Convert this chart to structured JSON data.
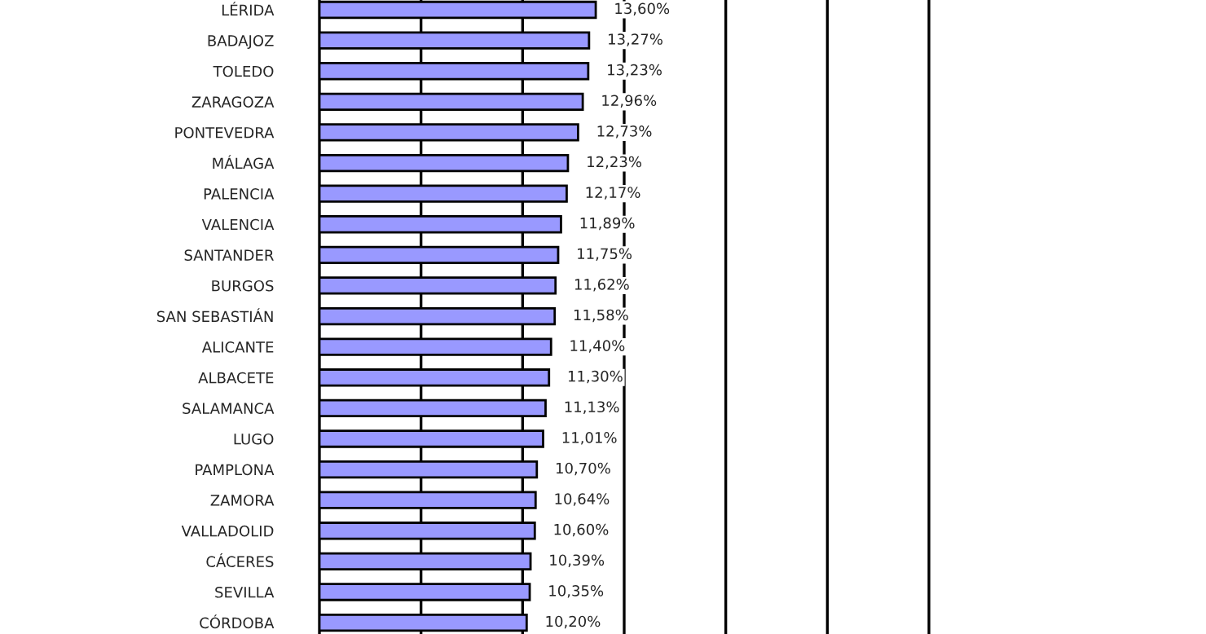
{
  "chart_data": {
    "type": "bar",
    "orientation": "horizontal",
    "categories": [
      "LÉRIDA",
      "BADAJOZ",
      "TOLEDO",
      "ZARAGOZA",
      "PONTEVEDRA",
      "MÁLAGA",
      "PALENCIA",
      "VALENCIA",
      "SANTANDER",
      "BURGOS",
      "SAN SEBASTIÁN",
      "ALICANTE",
      "ALBACETE",
      "SALAMANCA",
      "LUGO",
      "PAMPLONA",
      "ZAMORA",
      "VALLADOLID",
      "CÁCERES",
      "SEVILLA",
      "CÓRDOBA"
    ],
    "values": [
      13.6,
      13.27,
      13.23,
      12.96,
      12.73,
      12.23,
      12.17,
      11.89,
      11.75,
      11.62,
      11.58,
      11.4,
      11.3,
      11.13,
      11.01,
      10.7,
      10.64,
      10.6,
      10.39,
      10.35,
      10.2
    ],
    "value_labels": [
      "13,60%",
      "13,27%",
      "13,23%",
      "12,96%",
      "12,73%",
      "12,23%",
      "12,17%",
      "11,89%",
      "11,75%",
      "11,62%",
      "11,58%",
      "11,40%",
      "11,30%",
      "11,13%",
      "11,01%",
      "10,70%",
      "10,64%",
      "10,60%",
      "10,39%",
      "10,35%",
      "10,20%"
    ],
    "color": "#9999ff",
    "xlim": [
      0,
      30
    ],
    "xticks": [
      {
        "value": 5,
        "label": null
      },
      {
        "value": 10,
        "label": null
      },
      {
        "value": 15,
        "label": null
      },
      {
        "value": 20,
        "label": null
      },
      {
        "value": 25,
        "label": null
      }
    ],
    "grid": "x",
    "tick_labels": "y",
    "legend": false
  }
}
